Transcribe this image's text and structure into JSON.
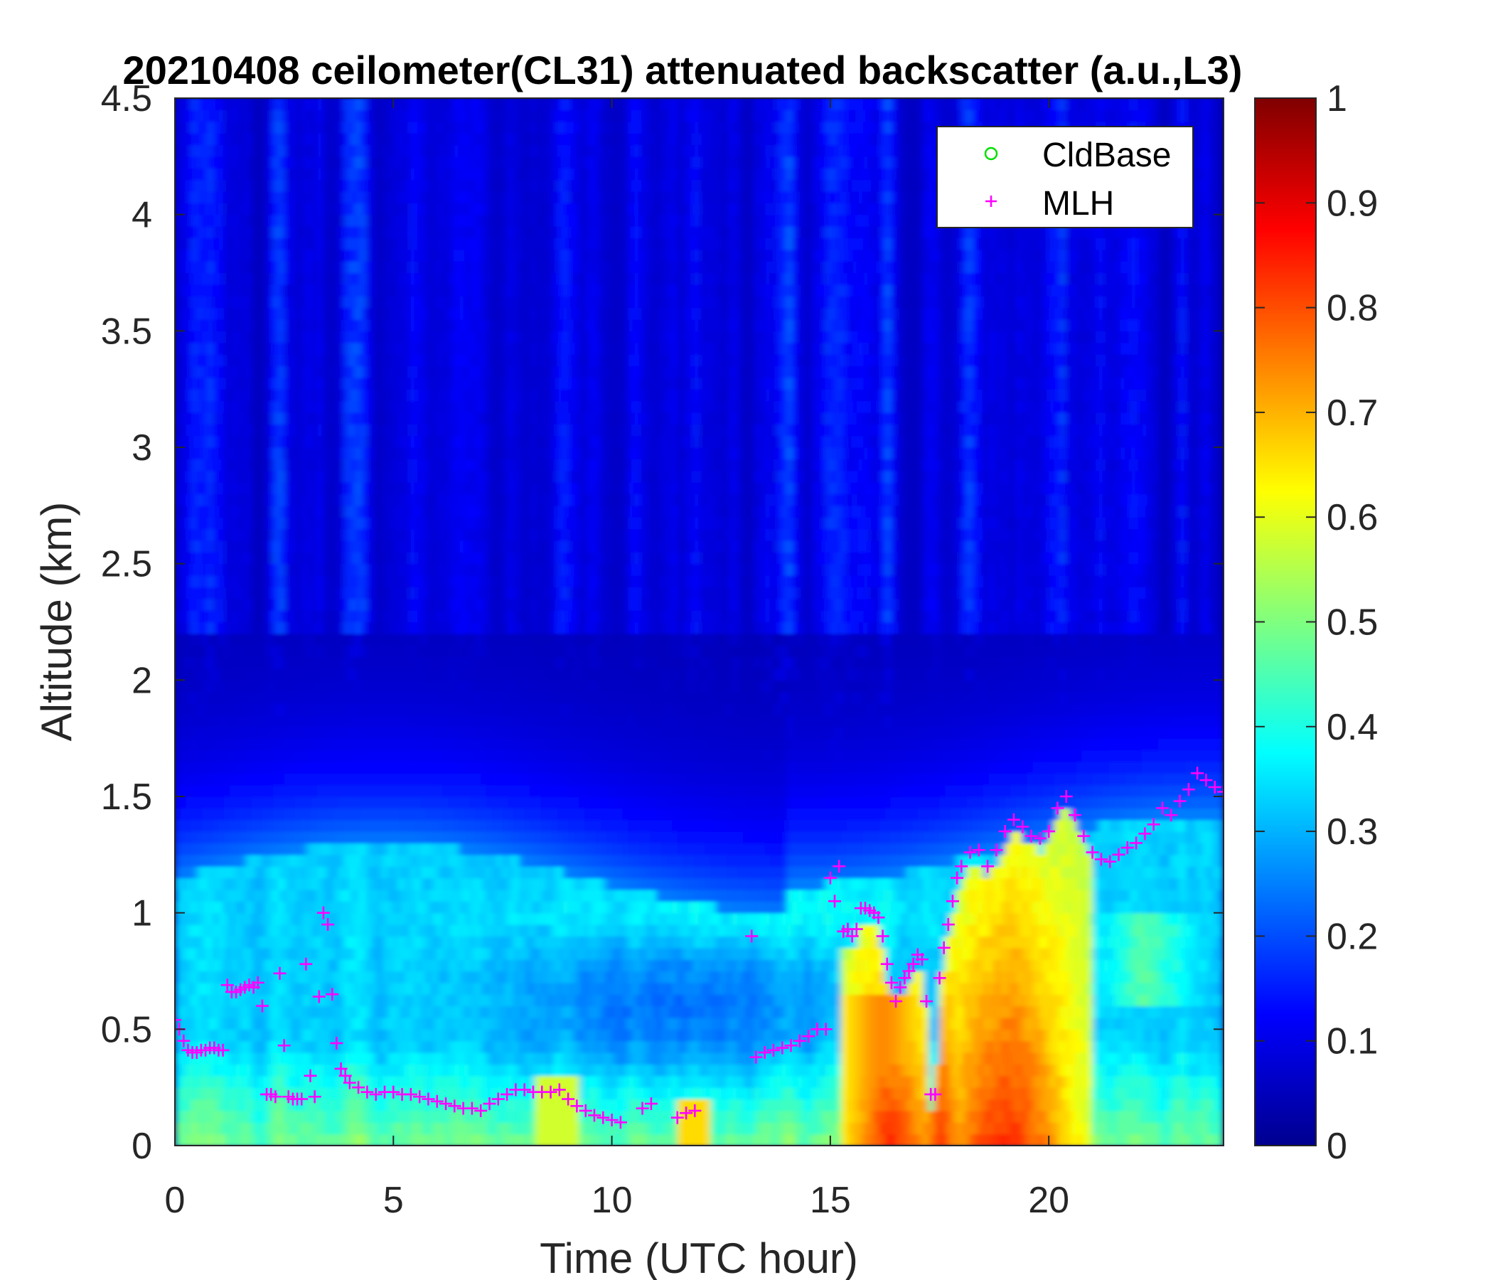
{
  "chart_data": {
    "type": "heatmap",
    "title": "20210408 ceilometer(CL31) attenuated backscatter (a.u.,L3)",
    "xlabel": "Time (UTC hour)",
    "ylabel": "Altitude (km)",
    "xlim": [
      0,
      24
    ],
    "ylim": [
      0,
      4.5
    ],
    "x_ticks": [
      0,
      5,
      10,
      15,
      20
    ],
    "x_tick_labels": [
      "0",
      "5",
      "10",
      "15",
      "20"
    ],
    "y_ticks": [
      0,
      0.5,
      1,
      1.5,
      2,
      2.5,
      3,
      3.5,
      4,
      4.5
    ],
    "y_tick_labels": [
      "0",
      "0.5",
      "1",
      "1.5",
      "2",
      "2.5",
      "3",
      "3.5",
      "4",
      "4.5"
    ],
    "colorbar": {
      "colormap": "jet",
      "clim": [
        0,
        1
      ],
      "ticks": [
        0,
        0.1,
        0.2,
        0.3,
        0.4,
        0.5,
        0.6,
        0.7,
        0.8,
        0.9,
        1
      ],
      "tick_labels": [
        "0",
        "0.1",
        "0.2",
        "0.3",
        "0.4",
        "0.5",
        "0.6",
        "0.7",
        "0.8",
        "0.9",
        "1"
      ]
    },
    "legend": {
      "placement": "top-right",
      "entries": [
        {
          "name": "CldBase",
          "marker": "o",
          "color": "#00e000"
        },
        {
          "name": "MLH",
          "marker": "+",
          "color": "#ff00ff"
        }
      ]
    },
    "series": [
      {
        "name": "MLH",
        "marker": "+",
        "color": "#ff00ff",
        "x": [
          0.0,
          0.1,
          0.2,
          0.3,
          0.4,
          0.5,
          0.6,
          0.7,
          0.8,
          0.9,
          1.0,
          1.1,
          1.2,
          1.3,
          1.4,
          1.5,
          1.6,
          1.7,
          1.8,
          1.9,
          2.0,
          2.1,
          2.2,
          2.3,
          2.4,
          2.5,
          2.6,
          2.7,
          2.8,
          2.9,
          3.0,
          3.1,
          3.2,
          3.3,
          3.4,
          3.5,
          3.6,
          3.7,
          3.8,
          3.9,
          4.0,
          4.2,
          4.4,
          4.6,
          4.8,
          5.0,
          5.2,
          5.4,
          5.6,
          5.8,
          6.0,
          6.2,
          6.4,
          6.6,
          6.8,
          7.0,
          7.2,
          7.4,
          7.6,
          7.8,
          8.0,
          8.2,
          8.4,
          8.6,
          8.8,
          9.0,
          9.2,
          9.4,
          9.6,
          9.8,
          10.0,
          10.2,
          10.7,
          10.9,
          11.5,
          11.7,
          11.9,
          13.2,
          13.3,
          13.5,
          13.7,
          13.9,
          14.1,
          14.3,
          14.5,
          14.7,
          14.9,
          15.0,
          15.1,
          15.2,
          15.3,
          15.4,
          15.5,
          15.6,
          15.7,
          15.8,
          15.9,
          16.0,
          16.1,
          16.2,
          16.3,
          16.4,
          16.5,
          16.6,
          16.7,
          16.8,
          16.9,
          17.0,
          17.1,
          17.2,
          17.3,
          17.4,
          17.5,
          17.6,
          17.7,
          17.8,
          17.9,
          18.0,
          18.2,
          18.4,
          18.6,
          18.8,
          19.0,
          19.2,
          19.4,
          19.6,
          19.8,
          20.0,
          20.2,
          20.4,
          20.6,
          20.8,
          21.0,
          21.2,
          21.4,
          21.6,
          21.8,
          22.0,
          22.2,
          22.4,
          22.6,
          22.8,
          23.0,
          23.2,
          23.4,
          23.6,
          23.8,
          24.0
        ],
        "y": [
          0.54,
          0.5,
          0.45,
          0.41,
          0.4,
          0.4,
          0.41,
          0.41,
          0.42,
          0.42,
          0.41,
          0.41,
          0.69,
          0.66,
          0.66,
          0.67,
          0.68,
          0.69,
          0.68,
          0.7,
          0.6,
          0.22,
          0.22,
          0.21,
          0.74,
          0.43,
          0.21,
          0.2,
          0.2,
          0.2,
          0.78,
          0.3,
          0.21,
          0.64,
          1.0,
          0.95,
          0.65,
          0.44,
          0.33,
          0.3,
          0.27,
          0.25,
          0.23,
          0.22,
          0.23,
          0.23,
          0.22,
          0.22,
          0.21,
          0.2,
          0.19,
          0.18,
          0.17,
          0.16,
          0.16,
          0.15,
          0.18,
          0.2,
          0.22,
          0.24,
          0.24,
          0.23,
          0.23,
          0.23,
          0.24,
          0.2,
          0.17,
          0.15,
          0.13,
          0.12,
          0.11,
          0.1,
          0.16,
          0.18,
          0.12,
          0.14,
          0.15,
          0.9,
          0.38,
          0.4,
          0.41,
          0.42,
          0.43,
          0.45,
          0.47,
          0.5,
          0.5,
          1.15,
          1.05,
          1.2,
          0.92,
          0.93,
          0.9,
          0.93,
          1.02,
          1.02,
          1.01,
          1.0,
          0.98,
          0.9,
          0.78,
          0.7,
          0.62,
          0.68,
          0.72,
          0.75,
          0.78,
          0.82,
          0.8,
          0.62,
          0.22,
          0.22,
          0.72,
          0.85,
          0.95,
          1.05,
          1.15,
          1.2,
          1.26,
          1.27,
          1.2,
          1.27,
          1.35,
          1.4,
          1.37,
          1.33,
          1.32,
          1.35,
          1.45,
          1.5,
          1.42,
          1.33,
          1.26,
          1.23,
          1.22,
          1.25,
          1.28,
          1.3,
          1.34,
          1.38,
          1.45,
          1.42,
          1.48,
          1.53,
          1.6,
          1.57,
          1.54,
          1.52
        ]
      },
      {
        "name": "CldBase",
        "marker": "o",
        "color": "#00e000",
        "x": [],
        "y": []
      }
    ]
  }
}
